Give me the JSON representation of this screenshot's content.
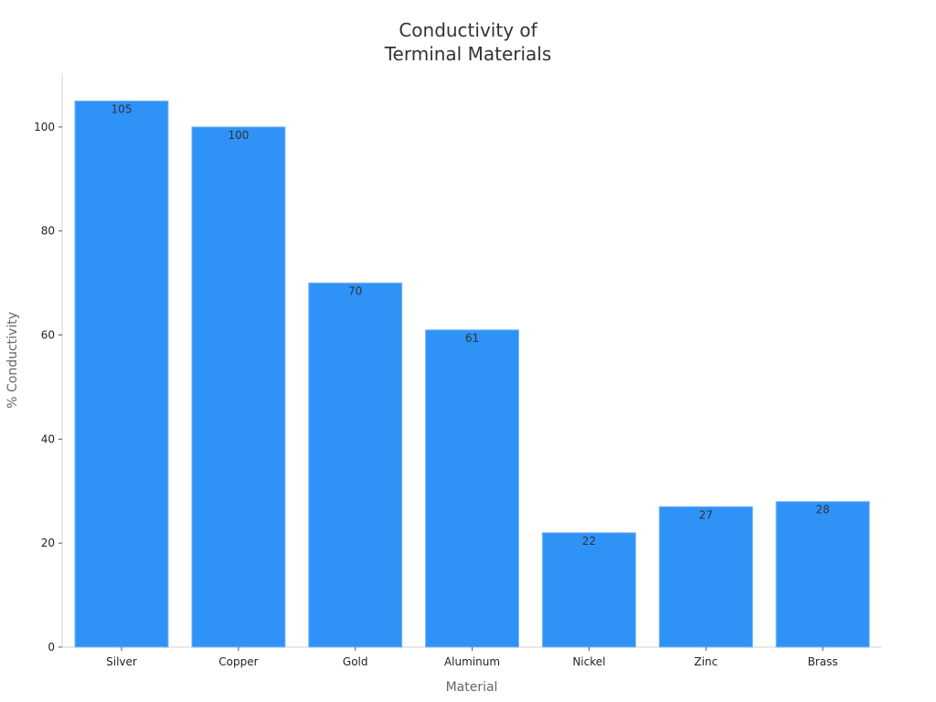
{
  "chart_data": {
    "type": "bar",
    "title_lines": [
      "Conductivity of",
      "Terminal Materials"
    ],
    "xlabel": "Material",
    "ylabel": "% Conductivity",
    "categories": [
      "Silver",
      "Copper",
      "Gold",
      "Aluminum",
      "Nickel",
      "Zinc",
      "Brass"
    ],
    "values": [
      105,
      100,
      70,
      61,
      22,
      27,
      28
    ],
    "ylim": [
      0,
      110
    ],
    "yticks": [
      0,
      20,
      40,
      60,
      80,
      100
    ],
    "bar_color": "#2f92f7",
    "bar_edge_color": "#7fb8f5",
    "grid": false,
    "legend": "none"
  }
}
